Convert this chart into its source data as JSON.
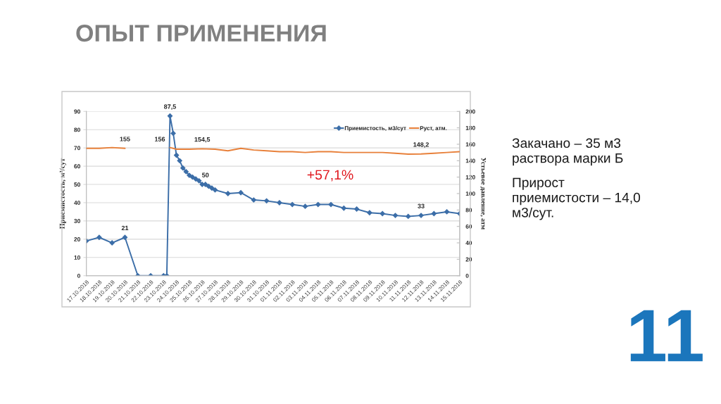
{
  "chart_data": {
    "type": "line",
    "title": "ОПЫТ ПРИМЕНЕНИЯ",
    "ylabel": "Приемистость, м³/сут",
    "y2label": "Устьевое давление, атм",
    "annotations": [
      "+57,1%",
      "Закачано – 35 м3 раствора марки Б",
      "Прирост приемистости – 14,0 м3/сут.",
      "11"
    ],
    "series": [
      {
        "name": "Приемистость, м3/сут",
        "color": "#3c6ea8",
        "marker": "diamond",
        "x": [
          "2018-10-17",
          "2018-10-18",
          "2018-10-19",
          "2018-10-20",
          "2018-10-21",
          "2018-10-22",
          "2018-10-23T00:00",
          "2018-10-23T06:00",
          "2018-10-23T12:00",
          "2018-10-23T18:00",
          "2018-10-24T00:00",
          "2018-10-24T06:00",
          "2018-10-24T12:00",
          "2018-10-24T18:00",
          "2018-10-25T00:00",
          "2018-10-25T06:00",
          "2018-10-25T12:00",
          "2018-10-25T18:00",
          "2018-10-26T00:00",
          "2018-10-26T06:00",
          "2018-10-26T12:00",
          "2018-10-26T18:00",
          "2018-10-27",
          "2018-10-28",
          "2018-10-29",
          "2018-10-30",
          "2018-10-31",
          "2018-11-01",
          "2018-11-02",
          "2018-11-03",
          "2018-11-04",
          "2018-11-05",
          "2018-11-06",
          "2018-11-07",
          "2018-11-08",
          "2018-11-09",
          "2018-11-10",
          "2018-11-11",
          "2018-11-12",
          "2018-11-13",
          "2018-11-14",
          "2018-11-15"
        ],
        "values": [
          19,
          21,
          18,
          21,
          0,
          0,
          0,
          0,
          87.5,
          78,
          66,
          63,
          59,
          57,
          55,
          54,
          53,
          52,
          50,
          50,
          49,
          48,
          47,
          45,
          45.5,
          41.5,
          41,
          40,
          39,
          38,
          39,
          39,
          37,
          36.5,
          34.5,
          34,
          33,
          32.5,
          33,
          34,
          35,
          34
        ],
        "value_labels": [
          null,
          null,
          null,
          "21",
          null,
          null,
          null,
          null,
          "87,5",
          null,
          null,
          null,
          null,
          null,
          null,
          null,
          null,
          null,
          null,
          "50",
          null,
          null,
          null,
          null,
          null,
          null,
          null,
          null,
          null,
          null,
          null,
          null,
          null,
          null,
          null,
          null,
          null,
          null,
          "33",
          null,
          null,
          null
        ]
      },
      {
        "name": "Руст, атм.",
        "color": "#e8803a",
        "axis": "y2",
        "x": [
          "2018-10-17",
          "2018-10-18",
          "2018-10-19",
          "2018-10-20",
          "2018-10-21",
          "2018-10-23T12:00",
          "2018-10-24",
          "2018-10-25",
          "2018-10-26",
          "2018-10-27",
          "2018-10-28",
          "2018-10-29",
          "2018-10-30",
          "2018-10-31",
          "2018-11-01",
          "2018-11-02",
          "2018-11-03",
          "2018-11-04",
          "2018-11-05",
          "2018-11-06",
          "2018-11-07",
          "2018-11-08",
          "2018-11-09",
          "2018-11-10",
          "2018-11-11",
          "2018-11-12",
          "2018-11-13",
          "2018-11-14",
          "2018-11-15"
        ],
        "values": [
          155,
          155,
          156,
          155,
          null,
          156,
          154,
          154,
          154.5,
          154,
          152,
          155,
          153,
          152,
          151,
          151,
          150,
          151,
          151,
          150,
          150,
          150,
          150,
          149,
          148,
          148.2,
          149,
          150,
          151
        ],
        "value_labels": [
          null,
          null,
          null,
          "155",
          null,
          "156",
          null,
          null,
          "154,5",
          null,
          null,
          null,
          null,
          null,
          null,
          null,
          null,
          null,
          null,
          null,
          null,
          null,
          null,
          null,
          null,
          "148,2",
          null,
          null,
          null
        ]
      }
    ],
    "xlim": [
      "2018-10-17",
      "2018-11-15"
    ],
    "xticks": [
      {
        "value": "2018-10-17",
        "label": "17.10.2018"
      },
      {
        "value": "2018-10-18",
        "label": "18.10.2018"
      },
      {
        "value": "2018-10-19",
        "label": "19.10.2018"
      },
      {
        "value": "2018-10-20",
        "label": "20.10.2018"
      },
      {
        "value": "2018-10-21",
        "label": "21.10.2018"
      },
      {
        "value": "2018-10-22",
        "label": "22.10.2018"
      },
      {
        "value": "2018-10-23",
        "label": "23.10.2018"
      },
      {
        "value": "2018-10-24",
        "label": "24.10.2018"
      },
      {
        "value": "2018-10-25",
        "label": "25.10.2018"
      },
      {
        "value": "2018-10-26",
        "label": "26.10.2018"
      },
      {
        "value": "2018-10-27",
        "label": "27.10.2018"
      },
      {
        "value": "2018-10-28",
        "label": "28.10.2018"
      },
      {
        "value": "2018-10-29",
        "label": "29.10.2018"
      },
      {
        "value": "2018-10-30",
        "label": "30.10.2018"
      },
      {
        "value": "2018-10-31",
        "label": "31.10.2018"
      },
      {
        "value": "2018-11-01",
        "label": "01.11.2018"
      },
      {
        "value": "2018-11-02",
        "label": "02.11.2018"
      },
      {
        "value": "2018-11-03",
        "label": "03.11.2018"
      },
      {
        "value": "2018-11-04",
        "label": "04.11.2018"
      },
      {
        "value": "2018-11-05",
        "label": "05.11.2018"
      },
      {
        "value": "2018-11-06",
        "label": "06.11.2018"
      },
      {
        "value": "2018-11-07",
        "label": "07.11.2018"
      },
      {
        "value": "2018-11-08",
        "label": "08.11.2018"
      },
      {
        "value": "2018-11-09",
        "label": "09.11.2018"
      },
      {
        "value": "2018-11-10",
        "label": "10.11.2018"
      },
      {
        "value": "2018-11-11",
        "label": "11.11.2018"
      },
      {
        "value": "2018-11-12",
        "label": "12.11.2018"
      },
      {
        "value": "2018-11-13",
        "label": "13.11.2018"
      },
      {
        "value": "2018-11-14",
        "label": "14.11.2018"
      },
      {
        "value": "2018-11-15",
        "label": "15.11.2018"
      }
    ],
    "ylim": [
      0,
      90
    ],
    "yticks": [
      0,
      10,
      20,
      30,
      40,
      50,
      60,
      70,
      80,
      90
    ],
    "y2lim": [
      0,
      200
    ],
    "y2ticks": [
      0,
      20,
      40,
      60,
      80,
      100,
      120,
      140,
      160,
      180,
      200
    ],
    "grid": "y",
    "legend": "top right"
  }
}
